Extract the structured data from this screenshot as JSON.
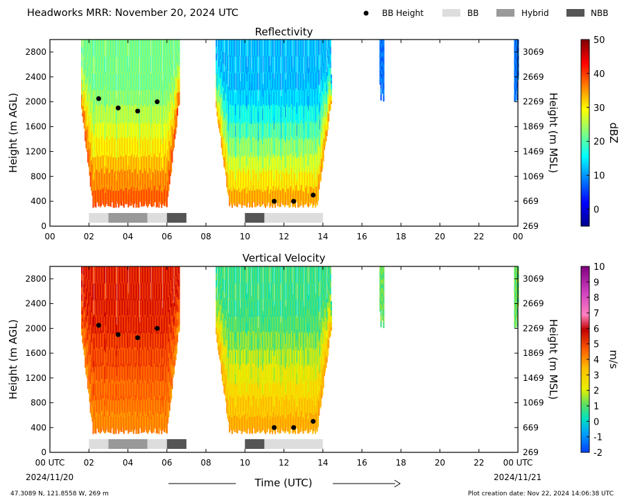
{
  "header": {
    "title": "Headworks MRR:  November 20, 2024 UTC"
  },
  "legend": [
    {
      "label": "BB Height",
      "kind": "marker",
      "color": "#000000"
    },
    {
      "label": "BB",
      "kind": "swatch",
      "color": "#dddddd"
    },
    {
      "label": "Hybrid",
      "kind": "swatch",
      "color": "#999999"
    },
    {
      "label": "NBB",
      "kind": "swatch",
      "color": "#555555"
    }
  ],
  "footer": {
    "location": "47.3089 N, 121.8558 W, 269 m",
    "creation": "Plot creation date: Nov 22, 2024 14:06:38 UTC",
    "xaxis_title": "Time (UTC)",
    "start_date": "2024/11/20",
    "end_date": "2024/11/21"
  },
  "chart_data": [
    {
      "type": "heatmap",
      "title": "Reflectivity",
      "xlabel": "Time (UTC)",
      "ylabel": "Height (m AGL)",
      "ylabel_right": "Height (m MSL)",
      "xlim": [
        0,
        24
      ],
      "ylim": [
        0,
        3000
      ],
      "x_ticks": [
        "00",
        "02",
        "04",
        "06",
        "08",
        "10",
        "12",
        "14",
        "16",
        "18",
        "20",
        "22",
        "00"
      ],
      "y_ticks": [
        0,
        400,
        800,
        1200,
        1600,
        2000,
        2400,
        2800
      ],
      "y_ticks_right": [
        269,
        669,
        1069,
        1469,
        1869,
        2269,
        2669,
        3069
      ],
      "colorbar": {
        "label": "dBZ",
        "range": [
          -5,
          50
        ],
        "ticks": [
          0,
          10,
          20,
          30,
          40,
          50
        ],
        "colormap": "jet"
      },
      "bb_height": [
        {
          "x": 2.5,
          "y": 2050
        },
        {
          "x": 3.5,
          "y": 1900
        },
        {
          "x": 4.5,
          "y": 1850
        },
        {
          "x": 5.5,
          "y": 2000
        },
        {
          "x": 11.5,
          "y": 400
        },
        {
          "x": 12.5,
          "y": 400
        },
        {
          "x": 13.5,
          "y": 500
        }
      ],
      "bb_type_segments": [
        {
          "start": 2,
          "end": 3,
          "type": "BB"
        },
        {
          "start": 3,
          "end": 5,
          "type": "Hybrid"
        },
        {
          "start": 5,
          "end": 6,
          "type": "BB"
        },
        {
          "start": 6,
          "end": 7,
          "type": "NBB"
        },
        {
          "start": 10,
          "end": 11,
          "type": "NBB"
        },
        {
          "start": 11,
          "end": 14,
          "type": "BB"
        }
      ],
      "precip_regions": [
        {
          "start": 1.6,
          "end": 6.6,
          "top": 3000,
          "bottom": 300,
          "core": 22,
          "low": 38
        },
        {
          "start": 8.5,
          "end": 14.4,
          "top": 3000,
          "bottom": 300,
          "core": 12,
          "low": 34
        },
        {
          "start": 16.9,
          "end": 17.1,
          "top": 3000,
          "bottom": 2000,
          "core": 8,
          "low": 8
        },
        {
          "start": 23.8,
          "end": 24,
          "top": 3000,
          "bottom": 2000,
          "core": 8,
          "low": 8
        }
      ]
    },
    {
      "type": "heatmap",
      "title": "Vertical Velocity",
      "xlabel": "Time (UTC)",
      "ylabel": "Height (m AGL)",
      "ylabel_right": "Height (m MSL)",
      "xlim": [
        0,
        24
      ],
      "ylim": [
        0,
        3000
      ],
      "x_ticks": [
        "00 UTC",
        "02",
        "04",
        "06",
        "08",
        "10",
        "12",
        "14",
        "16",
        "18",
        "20",
        "22",
        "00 UTC"
      ],
      "y_ticks": [
        0,
        400,
        800,
        1200,
        1600,
        2000,
        2400,
        2800
      ],
      "y_ticks_right": [
        269,
        669,
        1069,
        1469,
        1869,
        2269,
        2669,
        3069
      ],
      "colorbar": {
        "label": "m/s",
        "range": [
          -2,
          10
        ],
        "ticks": [
          -2,
          -1,
          0,
          1,
          2,
          3,
          4,
          5,
          6,
          7,
          8,
          9,
          10
        ],
        "colormap": "velocity"
      },
      "bb_height": [
        {
          "x": 2.5,
          "y": 2050
        },
        {
          "x": 3.5,
          "y": 1900
        },
        {
          "x": 4.5,
          "y": 1850
        },
        {
          "x": 5.5,
          "y": 2000
        },
        {
          "x": 11.5,
          "y": 400
        },
        {
          "x": 12.5,
          "y": 400
        },
        {
          "x": 13.5,
          "y": 500
        }
      ],
      "bb_type_segments": [
        {
          "start": 2,
          "end": 3,
          "type": "BB"
        },
        {
          "start": 3,
          "end": 5,
          "type": "Hybrid"
        },
        {
          "start": 5,
          "end": 6,
          "type": "BB"
        },
        {
          "start": 6,
          "end": 7,
          "type": "NBB"
        },
        {
          "start": 10,
          "end": 11,
          "type": "NBB"
        },
        {
          "start": 11,
          "end": 14,
          "type": "BB"
        }
      ],
      "precip_regions": [
        {
          "start": 1.6,
          "end": 6.6,
          "top": 3000,
          "bottom": 300,
          "core": 5.6,
          "low": 4.2
        },
        {
          "start": 8.5,
          "end": 14.4,
          "top": 3000,
          "bottom": 300,
          "core": 0.6,
          "low": 3.6
        },
        {
          "start": 16.9,
          "end": 17.1,
          "top": 3000,
          "bottom": 2000,
          "core": 1,
          "low": 1
        },
        {
          "start": 23.8,
          "end": 24,
          "top": 3000,
          "bottom": 2000,
          "core": 1,
          "low": 1
        }
      ]
    }
  ]
}
